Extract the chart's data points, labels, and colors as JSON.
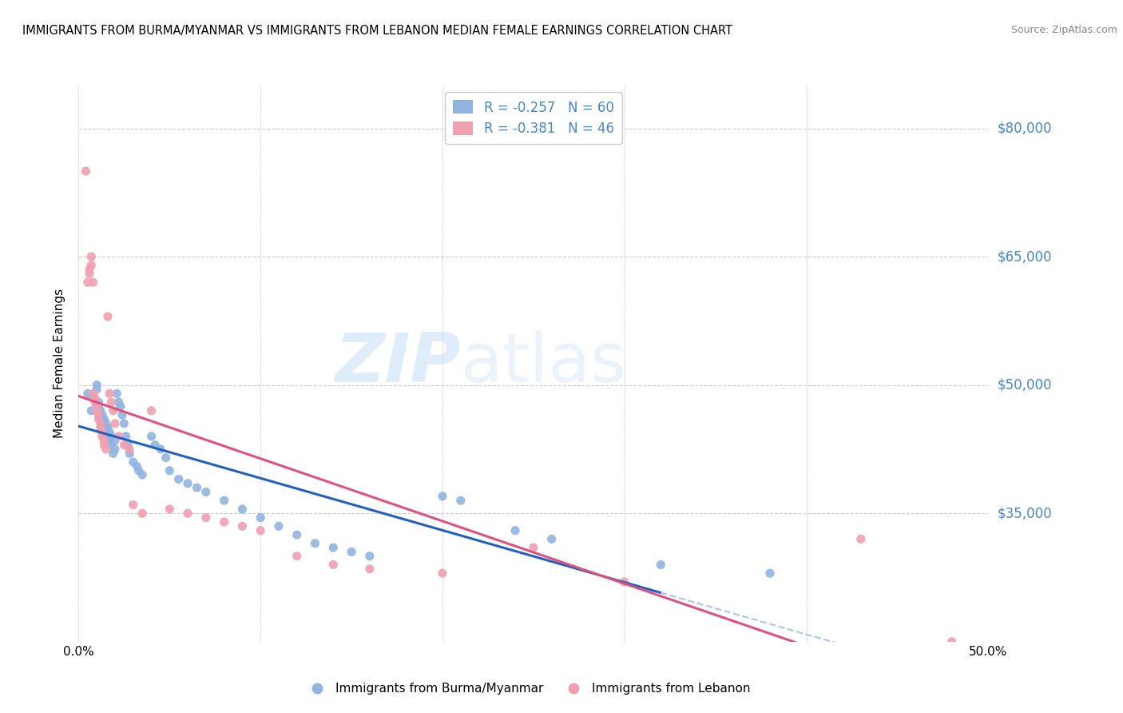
{
  "title": "IMMIGRANTS FROM BURMA/MYANMAR VS IMMIGRANTS FROM LEBANON MEDIAN FEMALE EARNINGS CORRELATION CHART",
  "source": "Source: ZipAtlas.com",
  "ylabel": "Median Female Earnings",
  "xlim": [
    0.0,
    0.5
  ],
  "ylim": [
    20000,
    85000
  ],
  "yticks": [
    35000,
    50000,
    65000,
    80000
  ],
  "ytick_labels": [
    "$35,000",
    "$50,000",
    "$65,000",
    "$80,000"
  ],
  "xticks": [
    0.0,
    0.1,
    0.2,
    0.3,
    0.4,
    0.5
  ],
  "blue_color": "#90b4e0",
  "pink_color": "#f0a0b0",
  "blue_line_color": "#2060c0",
  "pink_line_color": "#e05080",
  "dashed_extend_color": "#b0c8e8",
  "R_blue": -0.257,
  "N_blue": 60,
  "R_pink": -0.381,
  "N_pink": 46,
  "legend_label_blue": "Immigrants from Burma/Myanmar",
  "legend_label_pink": "Immigrants from Lebanon",
  "watermark_zip": "ZIP",
  "watermark_atlas": "atlas",
  "grid_color": "#cccccc",
  "background_color": "#ffffff",
  "blue_scatter_x": [
    0.005,
    0.007,
    0.008,
    0.01,
    0.01,
    0.011,
    0.011,
    0.012,
    0.012,
    0.013,
    0.013,
    0.014,
    0.014,
    0.015,
    0.015,
    0.016,
    0.016,
    0.017,
    0.017,
    0.018,
    0.018,
    0.019,
    0.02,
    0.02,
    0.021,
    0.022,
    0.023,
    0.024,
    0.025,
    0.026,
    0.027,
    0.028,
    0.03,
    0.032,
    0.033,
    0.035,
    0.04,
    0.042,
    0.045,
    0.048,
    0.05,
    0.055,
    0.06,
    0.065,
    0.07,
    0.08,
    0.09,
    0.1,
    0.11,
    0.12,
    0.13,
    0.14,
    0.15,
    0.16,
    0.2,
    0.21,
    0.24,
    0.26,
    0.32,
    0.38
  ],
  "blue_scatter_y": [
    49000,
    47000,
    48500,
    50000,
    49500,
    48000,
    47500,
    46000,
    47000,
    46500,
    45500,
    45000,
    46000,
    45500,
    44500,
    44000,
    45000,
    44500,
    43500,
    43000,
    44000,
    42000,
    43500,
    42500,
    49000,
    48000,
    47500,
    46500,
    45500,
    44000,
    43000,
    42000,
    41000,
    40500,
    40000,
    39500,
    44000,
    43000,
    42500,
    41500,
    40000,
    39000,
    38500,
    38000,
    37500,
    36500,
    35500,
    34500,
    33500,
    32500,
    31500,
    31000,
    30500,
    30000,
    37000,
    36500,
    33000,
    32000,
    29000,
    28000
  ],
  "pink_scatter_x": [
    0.004,
    0.005,
    0.006,
    0.006,
    0.007,
    0.007,
    0.008,
    0.008,
    0.009,
    0.009,
    0.01,
    0.01,
    0.011,
    0.011,
    0.012,
    0.012,
    0.013,
    0.013,
    0.014,
    0.014,
    0.015,
    0.016,
    0.017,
    0.018,
    0.019,
    0.02,
    0.022,
    0.025,
    0.028,
    0.03,
    0.035,
    0.04,
    0.05,
    0.06,
    0.07,
    0.08,
    0.09,
    0.1,
    0.12,
    0.14,
    0.16,
    0.2,
    0.25,
    0.3,
    0.43,
    0.48
  ],
  "pink_scatter_y": [
    75000,
    62000,
    63000,
    63500,
    65000,
    64000,
    62000,
    49000,
    48500,
    48000,
    47500,
    47000,
    46500,
    46000,
    45500,
    45000,
    44500,
    44000,
    43500,
    43000,
    42500,
    58000,
    49000,
    48000,
    47000,
    45500,
    44000,
    43000,
    42500,
    36000,
    35000,
    47000,
    35500,
    35000,
    34500,
    34000,
    33500,
    33000,
    30000,
    29000,
    28500,
    28000,
    31000,
    27000,
    32000,
    20000
  ]
}
